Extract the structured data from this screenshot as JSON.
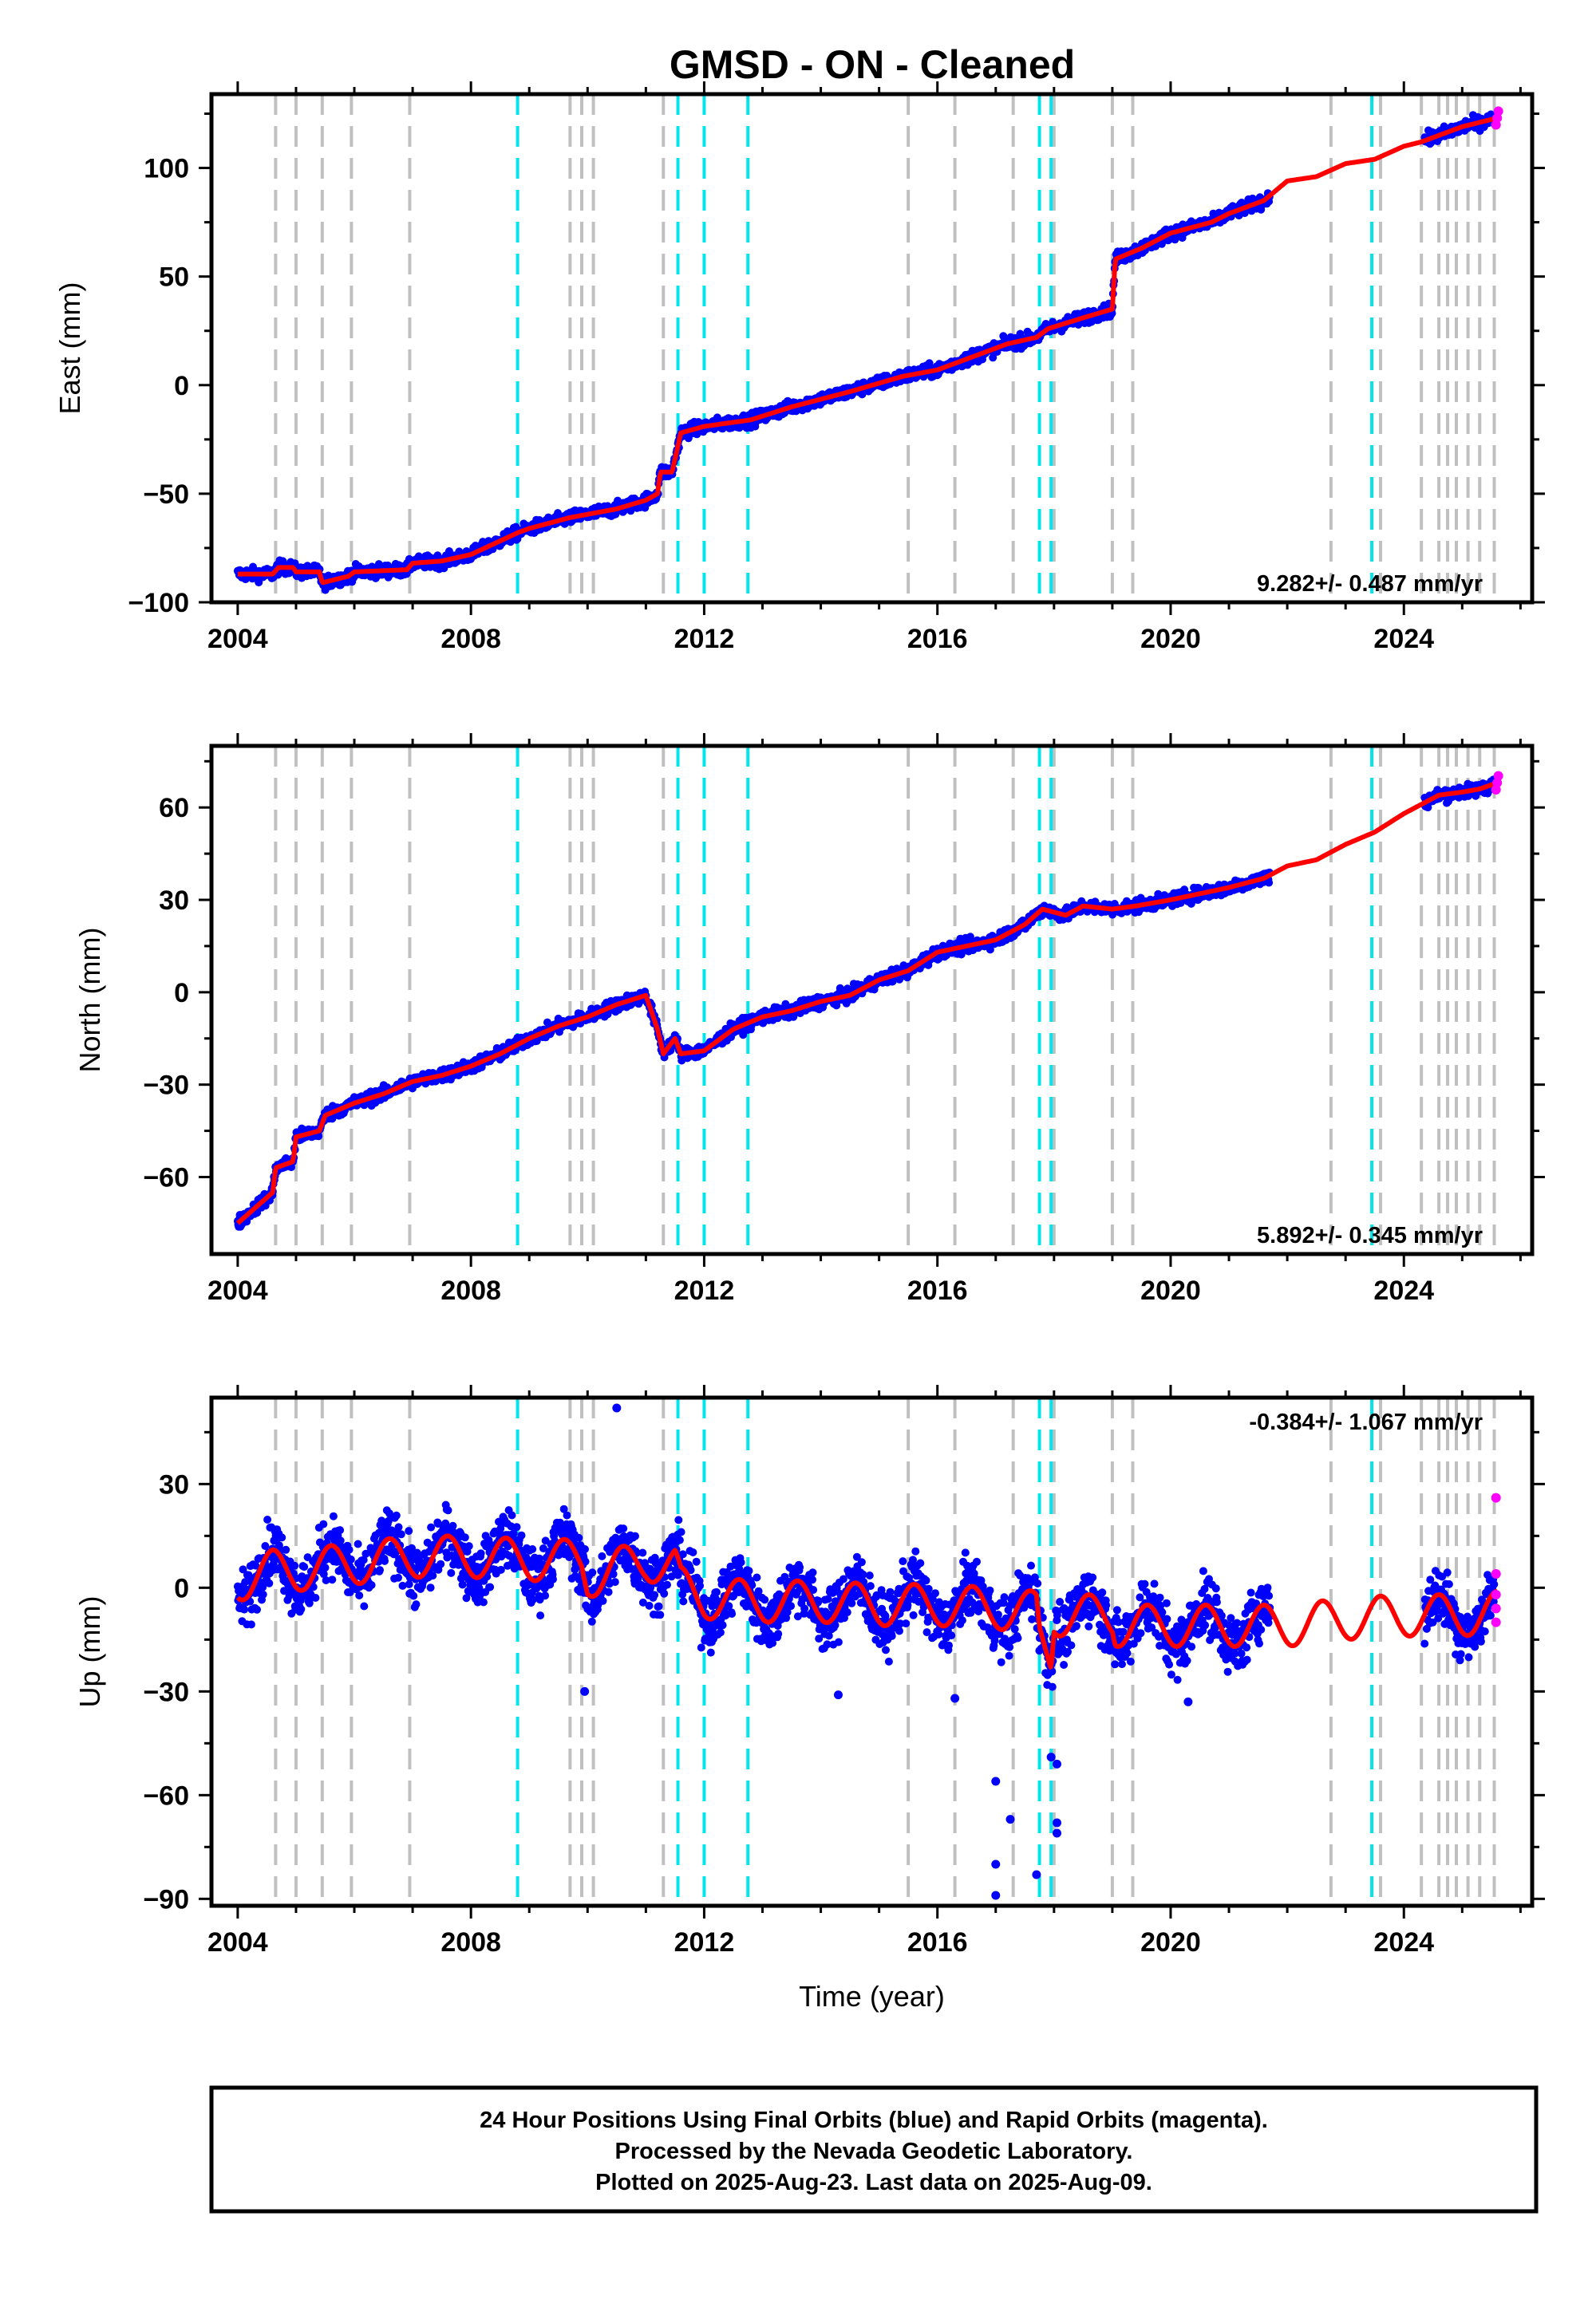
{
  "figure": {
    "title": "GMSD  - ON - Cleaned",
    "footer_lines": [
      "24 Hour Positions Using Final Orbits (blue) and Rapid Orbits (magenta).",
      "Processed by the Nevada Geodetic Laboratory.",
      "Plotted on 2025-Aug-23. Last data on 2025-Aug-09."
    ],
    "colors": {
      "final_points": "#0000ff",
      "rapid_points": "#ff00ff",
      "model": "#ff0000",
      "event_gray": "#c0c0c0",
      "event_cyan": "#00e5ee"
    }
  },
  "chart_data": [
    {
      "type": "scatter",
      "ylabel": "East (mm)",
      "xlabel": "",
      "xlim": [
        2003.55,
        2026.2
      ],
      "ylim": [
        -100,
        134
      ],
      "xticks": [
        2004,
        2008,
        2012,
        2016,
        2020,
        2024
      ],
      "yticks": [
        -100,
        -50,
        0,
        50,
        100
      ],
      "rate_label": "9.282+/- 0.487 mm/yr",
      "rate_position": "bottom-right",
      "grid": false,
      "model_trend": {
        "x": [
          2004.0,
          2004.6,
          2004.7,
          2004.95,
          2005.0,
          2005.4,
          2005.45,
          2005.9,
          2006.0,
          2006.9,
          2007.0,
          2007.5,
          2008.0,
          2008.8,
          2009.0,
          2009.7,
          2010.1,
          2010.5,
          2011.0,
          2011.2,
          2011.25,
          2011.45,
          2011.55,
          2011.6,
          2012.0,
          2012.8,
          2013.5,
          2014.5,
          2015.4,
          2016.0,
          2016.5,
          2017.2,
          2017.7,
          2017.9,
          2018.5,
          2019.0,
          2019.05,
          2019.5,
          2020.0,
          2020.7,
          2021.0,
          2021.6,
          2022.0,
          2022.5,
          2023.0,
          2023.5,
          2024.0,
          2024.3,
          2024.6,
          2024.8,
          2025.0,
          2025.3,
          2025.6
        ],
        "y": [
          -87,
          -87,
          -84,
          -84,
          -86,
          -86,
          -91,
          -88,
          -86,
          -85,
          -82,
          -81,
          -78,
          -68,
          -66,
          -61,
          -59,
          -57,
          -53,
          -50,
          -40,
          -40,
          -28,
          -22,
          -19,
          -16,
          -10,
          -3,
          4,
          7,
          12,
          19,
          22,
          26,
          31,
          35,
          58,
          63,
          70,
          75,
          79,
          85,
          94,
          96,
          102,
          104,
          110,
          112,
          115,
          117,
          119,
          121,
          123
        ]
      },
      "scatter_spread": 3.5,
      "gaps": [
        [
          2021.7,
          2024.35
        ]
      ],
      "events_gray": [
        2004.65,
        2005.0,
        2005.45,
        2005.95,
        2006.95,
        2009.7,
        2009.9,
        2010.1,
        2011.3,
        2015.5,
        2016.3,
        2017.3,
        2018.0,
        2019.0,
        2019.35,
        2022.75,
        2023.6,
        2024.3,
        2024.6,
        2024.75,
        2024.9,
        2025.1,
        2025.3,
        2025.55
      ],
      "events_cyan": [
        2008.8,
        2011.55,
        2012.0,
        2012.75,
        2017.75,
        2017.95,
        2023.45
      ]
    },
    {
      "type": "scatter",
      "ylabel": "North (mm)",
      "xlabel": "",
      "xlim": [
        2003.55,
        2026.2
      ],
      "ylim": [
        -85,
        80
      ],
      "xticks": [
        2004,
        2008,
        2012,
        2016,
        2020,
        2024
      ],
      "yticks": [
        -60,
        -30,
        0,
        30,
        60
      ],
      "rate_label": "5.892+/- 0.345 mm/yr",
      "rate_position": "bottom-right",
      "grid": false,
      "model_trend": {
        "x": [
          2004.0,
          2004.3,
          2004.6,
          2004.65,
          2004.95,
          2005.0,
          2005.4,
          2005.5,
          2006.0,
          2006.5,
          2007.0,
          2007.5,
          2008.0,
          2008.5,
          2009.0,
          2009.5,
          2010.0,
          2010.5,
          2011.0,
          2011.2,
          2011.3,
          2011.5,
          2011.6,
          2012.0,
          2012.5,
          2013.0,
          2013.5,
          2014.0,
          2014.5,
          2015.0,
          2015.5,
          2016.0,
          2016.5,
          2017.0,
          2017.5,
          2017.8,
          2018.2,
          2018.5,
          2019.0,
          2019.4,
          2020.0,
          2020.5,
          2021.0,
          2021.6,
          2022.0,
          2022.5,
          2023.0,
          2023.5,
          2024.0,
          2024.3,
          2024.6,
          2025.0,
          2025.3,
          2025.6
        ],
        "y": [
          -75,
          -70,
          -65,
          -57,
          -55,
          -47,
          -45,
          -40,
          -36,
          -33,
          -29,
          -27,
          -24,
          -20,
          -15,
          -11,
          -8,
          -4,
          -1,
          -12,
          -20,
          -15,
          -20,
          -19,
          -12,
          -8,
          -6,
          -3,
          -1,
          4,
          7,
          13,
          15,
          17,
          22,
          27,
          25,
          28,
          27,
          28,
          30,
          32,
          34,
          37,
          41,
          43,
          48,
          52,
          58,
          61,
          64,
          65,
          66,
          68
        ]
      },
      "scatter_spread": 2.5,
      "gaps": [
        [
          2021.7,
          2024.35
        ]
      ],
      "events_gray": [
        2004.65,
        2005.0,
        2005.45,
        2005.95,
        2006.95,
        2009.7,
        2009.9,
        2010.1,
        2011.3,
        2015.5,
        2016.3,
        2017.3,
        2018.0,
        2019.0,
        2019.35,
        2022.75,
        2023.6,
        2024.3,
        2024.6,
        2024.75,
        2024.9,
        2025.1,
        2025.3,
        2025.55
      ],
      "events_cyan": [
        2008.8,
        2011.55,
        2012.0,
        2012.75,
        2017.75,
        2017.95,
        2023.45
      ]
    },
    {
      "type": "scatter",
      "ylabel": "Up (mm)",
      "xlabel": "Time (year)",
      "xlim": [
        2003.55,
        2026.2
      ],
      "ylim": [
        -92,
        55
      ],
      "xticks": [
        2004,
        2008,
        2012,
        2016,
        2020,
        2024
      ],
      "yticks": [
        -90,
        -60,
        -30,
        0,
        30
      ],
      "rate_label": "-0.384+/- 1.067 mm/yr",
      "rate_position": "top-right",
      "grid": false,
      "model_trend": {
        "x": [
          2004.0,
          2004.6,
          2005.0,
          2006.0,
          2007.0,
          2008.0,
          2009.0,
          2009.9,
          2010.0,
          2011.0,
          2011.5,
          2011.6,
          2012.0,
          2013.0,
          2014.0,
          2015.0,
          2016.0,
          2017.0,
          2017.7,
          2017.75,
          2017.95,
          2018.0,
          2019.0,
          2019.05,
          2020.0,
          2021.0,
          2022.0,
          2023.0,
          2024.0,
          2025.0,
          2025.6
        ],
        "y": [
          2,
          5,
          5,
          7,
          9,
          9,
          8,
          8,
          3,
          8,
          6,
          0,
          -3,
          -4,
          -4,
          -5,
          -5,
          -6,
          -7,
          -15,
          -20,
          -8,
          -8,
          -11,
          -11,
          -11,
          -11,
          -9,
          -8,
          -8,
          -7
        ]
      },
      "seasonal_amplitude": 6,
      "scatter_spread": 6,
      "gaps": [
        [
          2021.7,
          2024.35
        ]
      ],
      "outliers": [
        {
          "x": 2009.95,
          "y": -30
        },
        {
          "x": 2017.0,
          "y": -56
        },
        {
          "x": 2017.0,
          "y": -80
        },
        {
          "x": 2017.0,
          "y": -89
        },
        {
          "x": 2017.25,
          "y": -67
        },
        {
          "x": 2017.7,
          "y": -83
        },
        {
          "x": 2017.95,
          "y": -49
        },
        {
          "x": 2018.05,
          "y": -51
        },
        {
          "x": 2018.05,
          "y": -68
        },
        {
          "x": 2018.05,
          "y": -71
        },
        {
          "x": 2016.3,
          "y": -32
        },
        {
          "x": 2014.3,
          "y": -31
        },
        {
          "x": 2020.3,
          "y": -33
        },
        {
          "x": 2010.5,
          "y": 52
        }
      ],
      "rapid_points": [
        {
          "x": 2025.58,
          "y": 26
        },
        {
          "x": 2025.58,
          "y": 4
        },
        {
          "x": 2025.58,
          "y": -2
        },
        {
          "x": 2025.58,
          "y": -6
        },
        {
          "x": 2025.58,
          "y": -10
        }
      ],
      "events_gray": [
        2004.65,
        2005.0,
        2005.45,
        2005.95,
        2006.95,
        2009.7,
        2009.9,
        2010.1,
        2011.3,
        2015.5,
        2016.3,
        2017.3,
        2018.0,
        2019.0,
        2019.35,
        2022.75,
        2023.6,
        2024.3,
        2024.6,
        2024.75,
        2024.9,
        2025.1,
        2025.3,
        2025.55
      ],
      "events_cyan": [
        2008.8,
        2011.55,
        2012.0,
        2012.75,
        2017.75,
        2017.95,
        2023.45
      ]
    }
  ]
}
